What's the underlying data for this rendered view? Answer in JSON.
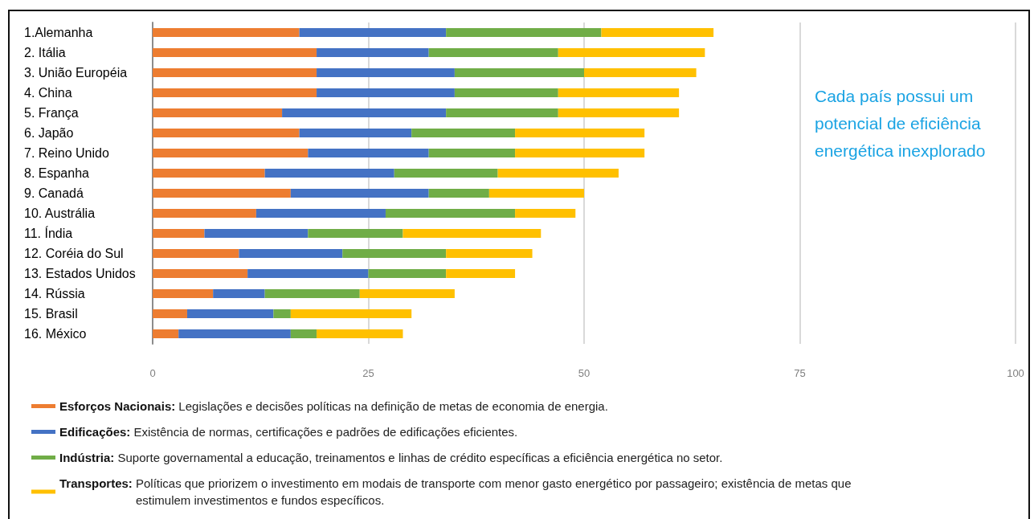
{
  "chart_data": {
    "type": "bar",
    "orientation": "horizontal",
    "stacked": true,
    "categories": [
      "1.Alemanha",
      "2. Itália",
      "3. União Européia",
      "4. China",
      "5. França",
      "6. Japão",
      "7. Reino Unido",
      "8. Espanha",
      "9. Canadá",
      "10. Austrália",
      "11. Índia",
      "12. Coréia do Sul",
      "13. Estados Unidos",
      "14. Rússia",
      "15. Brasil",
      "16. México"
    ],
    "series": [
      {
        "name": "Esforços Nacionais:",
        "color": "#ed7d31",
        "values": [
          17,
          19,
          19,
          19,
          15,
          17,
          18,
          13,
          16,
          12,
          6,
          10,
          11,
          7,
          4,
          3
        ]
      },
      {
        "name": "Edificações:",
        "color": "#4472c4",
        "values": [
          17,
          13,
          16,
          16,
          19,
          13,
          14,
          15,
          16,
          15,
          12,
          12,
          14,
          6,
          10,
          13
        ]
      },
      {
        "name": "Indústria:",
        "color": "#70ad47",
        "values": [
          18,
          15,
          15,
          12,
          13,
          12,
          10,
          12,
          7,
          15,
          11,
          12,
          9,
          11,
          2,
          3
        ]
      },
      {
        "name": "Transportes:",
        "color": "#ffc000",
        "values": [
          13,
          17,
          13,
          14,
          14,
          15,
          15,
          14,
          11,
          7,
          16,
          10,
          8,
          11,
          14,
          10
        ]
      }
    ],
    "xlim": [
      0,
      100
    ],
    "xticks": [
      0,
      25,
      50,
      75,
      100
    ],
    "grid": "x",
    "legend": "bottom",
    "annotations": [
      "Legislações e decisões políticas na definição de metas de economia de energia.",
      "Existência de normas, certificações e padrões de edificações eficientes.",
      "Suporte governamental a educação, treinamentos e linhas de crédito específicas a eficiência energética no setor.",
      "Políticas que priorizem o investimento em modais de transporte com menor gasto energético por passageiro; existência de metas que estimulem investimentos e fundos específicos.",
      "Cada país possui um potencial de eficiência energética inexplorado"
    ]
  }
}
